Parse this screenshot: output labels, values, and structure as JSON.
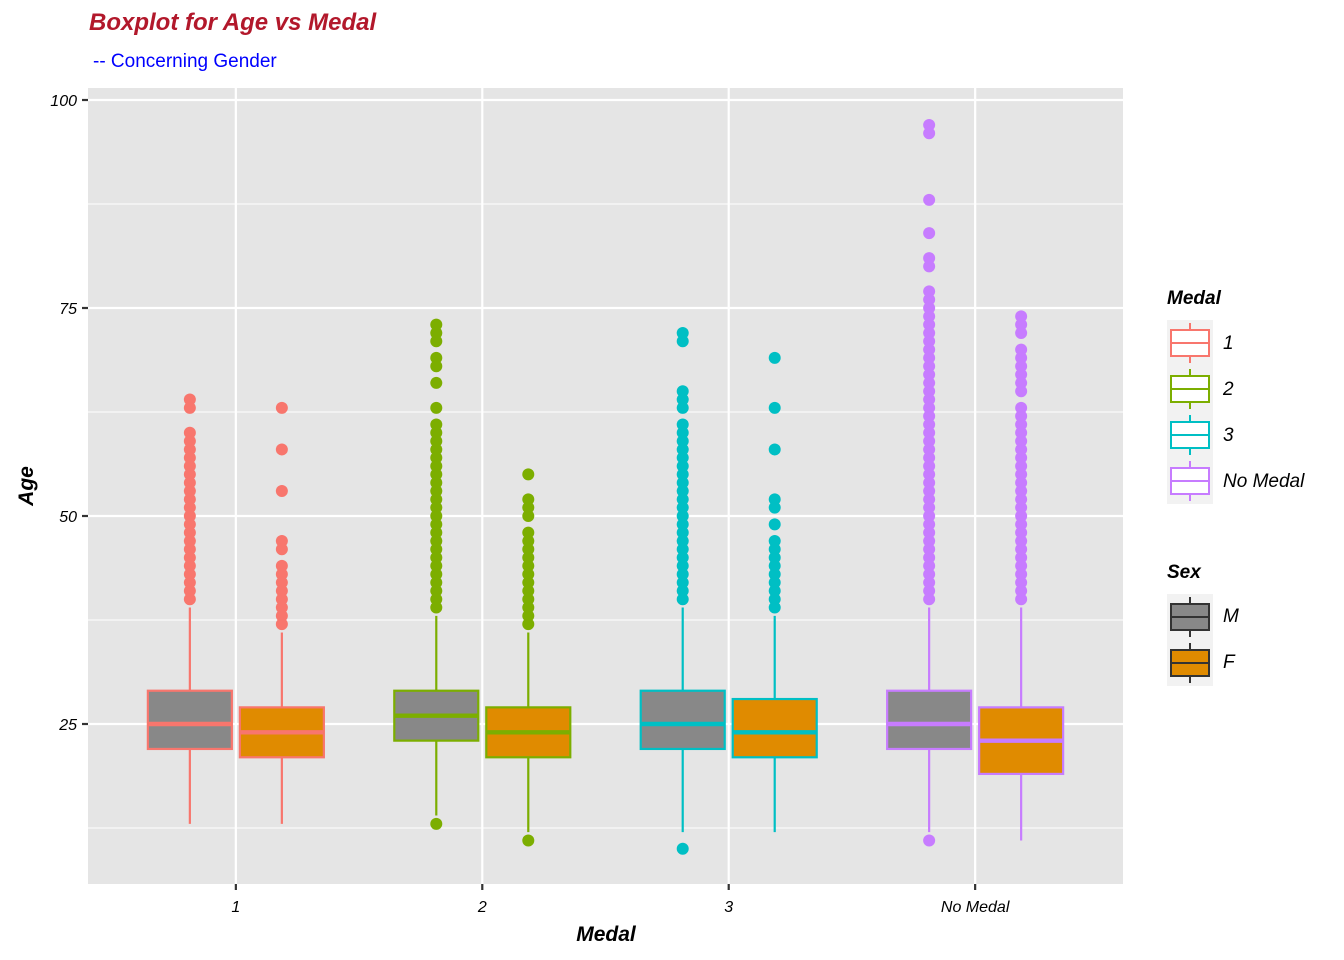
{
  "chart_data": {
    "type": "boxplot",
    "title": "Boxplot for Age vs Medal",
    "subtitle": "-- Concerning Gender",
    "xlabel": "Medal",
    "ylabel": "Age",
    "categories": [
      "1",
      "2",
      "3",
      "No Medal"
    ],
    "ylim": [
      6.5,
      102
    ],
    "yticks": [
      25,
      50,
      75,
      100
    ],
    "ytick_labels": [
      "25",
      "50",
      "75",
      "100"
    ],
    "grid": true,
    "legends": [
      {
        "title": "Medal",
        "placement": "right",
        "entries": [
          {
            "label": "1",
            "color": "#F8766D"
          },
          {
            "label": "2",
            "color": "#7CAE00"
          },
          {
            "label": "3",
            "color": "#00BFC4"
          },
          {
            "label": "No Medal",
            "color": "#C77CFF"
          }
        ]
      },
      {
        "title": "Sex",
        "placement": "right",
        "entries": [
          {
            "label": "M",
            "fill": "#888888"
          },
          {
            "label": "F",
            "fill": "#E08B00"
          }
        ]
      }
    ],
    "series": [
      {
        "name": "M",
        "fill": "#888888",
        "boxes": [
          {
            "category": "1",
            "whisker_low": 13,
            "q1": 22,
            "median": 25,
            "q3": 29,
            "whisker_high": 39,
            "outliers": [
              64,
              63,
              60,
              59,
              58,
              57,
              56,
              55,
              54,
              53,
              52,
              51,
              50,
              49,
              48,
              47,
              46,
              45,
              44,
              43,
              42,
              41,
              40
            ]
          },
          {
            "category": "2",
            "whisker_low": 14,
            "q1": 23,
            "median": 26,
            "q3": 29,
            "whisker_high": 38,
            "outliers": [
              73,
              72,
              71,
              69,
              68,
              66,
              63,
              61,
              60,
              59,
              58,
              57,
              56,
              55,
              54,
              53,
              52,
              51,
              50,
              49,
              48,
              47,
              46,
              45,
              44,
              43,
              42,
              41,
              40,
              39,
              13
            ]
          },
          {
            "category": "3",
            "whisker_low": 12,
            "q1": 22,
            "median": 25,
            "q3": 29,
            "whisker_high": 39,
            "outliers": [
              72,
              71,
              65,
              64,
              63,
              61,
              60,
              59,
              58,
              57,
              56,
              55,
              54,
              53,
              52,
              51,
              50,
              49,
              48,
              47,
              46,
              45,
              44,
              43,
              42,
              41,
              40,
              10
            ]
          },
          {
            "category": "No Medal",
            "whisker_low": 12,
            "q1": 22,
            "median": 25,
            "q3": 29,
            "whisker_high": 39,
            "outliers": [
              97,
              96,
              88,
              84,
              81,
              80,
              77,
              76,
              75,
              74,
              73,
              72,
              71,
              70,
              69,
              68,
              67,
              66,
              65,
              64,
              63,
              62,
              61,
              60,
              59,
              58,
              57,
              56,
              55,
              54,
              53,
              52,
              51,
              50,
              49,
              48,
              47,
              46,
              45,
              44,
              43,
              42,
              41,
              40,
              11
            ]
          }
        ]
      },
      {
        "name": "F",
        "fill": "#E08B00",
        "boxes": [
          {
            "category": "1",
            "whisker_low": 13,
            "q1": 21,
            "median": 24,
            "q3": 27,
            "whisker_high": 36,
            "outliers": [
              63,
              58,
              53,
              47,
              46,
              44,
              43,
              42,
              41,
              40,
              39,
              38,
              37
            ]
          },
          {
            "category": "2",
            "whisker_low": 12,
            "q1": 21,
            "median": 24,
            "q3": 27,
            "whisker_high": 36,
            "outliers": [
              55,
              52,
              51,
              50,
              48,
              47,
              46,
              45,
              44,
              43,
              42,
              41,
              40,
              39,
              38,
              37,
              11
            ]
          },
          {
            "category": "3",
            "whisker_low": 12,
            "q1": 21,
            "median": 24,
            "q3": 28,
            "whisker_high": 38,
            "outliers": [
              69,
              63,
              58,
              52,
              51,
              49,
              47,
              46,
              45,
              44,
              43,
              42,
              41,
              40,
              39
            ]
          },
          {
            "category": "No Medal",
            "whisker_low": 11,
            "q1": 19,
            "median": 23,
            "q3": 27,
            "whisker_high": 39,
            "outliers": [
              74,
              73,
              72,
              70,
              69,
              68,
              67,
              66,
              65,
              63,
              62,
              61,
              60,
              59,
              58,
              57,
              56,
              55,
              54,
              53,
              52,
              51,
              50,
              49,
              48,
              47,
              46,
              45,
              44,
              43,
              42,
              41,
              40
            ]
          }
        ]
      }
    ],
    "category_colors": {
      "1": "#F8766D",
      "2": "#7CAE00",
      "3": "#00BFC4",
      "No Medal": "#C77CFF"
    }
  }
}
